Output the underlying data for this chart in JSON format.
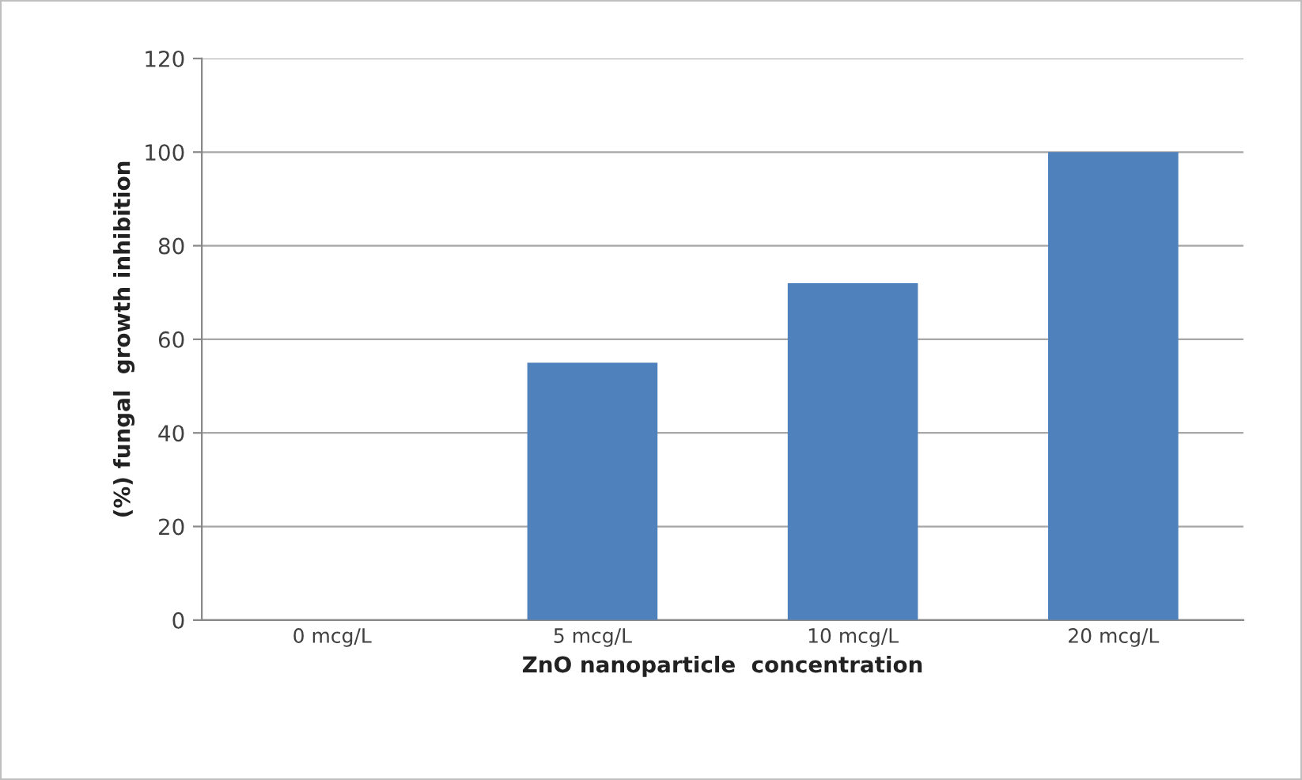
{
  "chart_data": {
    "type": "bar",
    "xlabel": "ZnO nanoparticle  concentration",
    "ylabel": "(%) fungal  growth inhibition",
    "categories": [
      "0 mcg/L",
      "5 mcg/L",
      "10 mcg/L",
      "20 mcg/L"
    ],
    "values": [
      0,
      55,
      72,
      100
    ],
    "color": "#4f81bd",
    "ylim": [
      0,
      120
    ],
    "yticks": [
      0,
      20,
      40,
      60,
      80,
      100,
      120
    ],
    "grid": "y",
    "legend": false
  }
}
